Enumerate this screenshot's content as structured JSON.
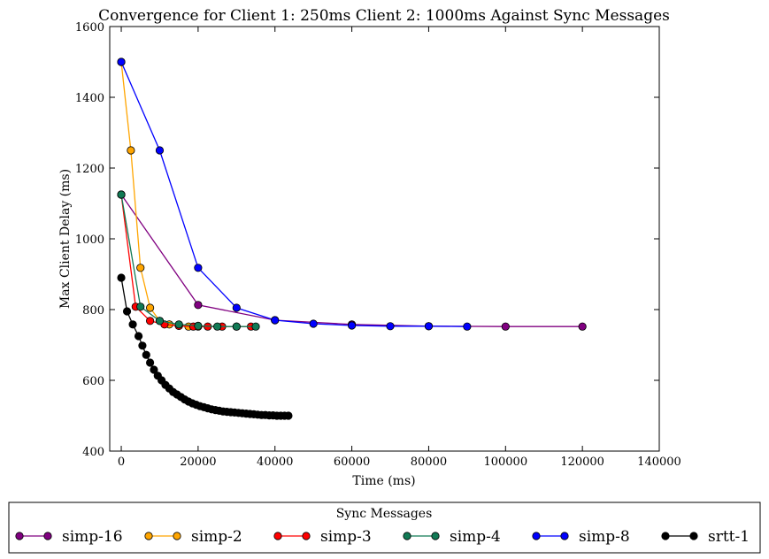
{
  "chart_data": {
    "type": "line",
    "title": "Convergence for Client 1: 250ms Client 2: 1000ms Against Sync Messages",
    "xlabel": "Time (ms)",
    "ylabel": "Max Client Delay (ms)",
    "xlim": [
      -3000,
      140000
    ],
    "ylim": [
      400,
      1600
    ],
    "xticks": [
      0,
      20000,
      40000,
      60000,
      80000,
      100000,
      120000,
      140000
    ],
    "yticks": [
      400,
      600,
      800,
      1000,
      1200,
      1400,
      1600
    ],
    "grid": false,
    "legend": {
      "title": "Sync Messages",
      "placement": "below-plot"
    },
    "series": [
      {
        "name": "simp-16",
        "color": "#800080",
        "x": [
          0,
          20000,
          40000,
          60000,
          80000,
          100000,
          120000
        ],
        "y": [
          1125,
          813,
          770,
          758,
          753,
          752,
          752
        ]
      },
      {
        "name": "simp-2",
        "color": "#FFA500",
        "x": [
          0,
          2500,
          5000,
          7500,
          10000,
          12500,
          15000,
          17500,
          20000
        ],
        "y": [
          1500,
          1250,
          918,
          805,
          768,
          758,
          754,
          752,
          752
        ]
      },
      {
        "name": "simp-3",
        "color": "#FF0000",
        "x": [
          0,
          3750,
          7500,
          11250,
          15000,
          18750,
          22500,
          26250,
          30000,
          33750
        ],
        "y": [
          1125,
          808,
          768,
          758,
          754,
          752,
          752,
          752,
          752,
          752
        ]
      },
      {
        "name": "simp-4",
        "color": "#117A55",
        "x": [
          0,
          5000,
          10000,
          15000,
          20000,
          25000,
          30000,
          35000
        ],
        "y": [
          1125,
          808,
          768,
          758,
          754,
          752,
          752,
          752
        ]
      },
      {
        "name": "simp-8",
        "color": "#0000FF",
        "x": [
          0,
          10000,
          20000,
          30000,
          40000,
          50000,
          60000,
          70000,
          80000,
          90000
        ],
        "y": [
          1500,
          1250,
          918,
          805,
          770,
          760,
          755,
          753,
          753,
          752
        ]
      },
      {
        "name": "srtt-1",
        "color": "#000000",
        "x": [
          0,
          1500,
          3000,
          4500,
          5500,
          6500,
          7500,
          8500,
          9500,
          10500,
          11500,
          12500,
          13500,
          14500,
          15500,
          16500,
          17500,
          18500,
          19500,
          20500,
          21500,
          22500,
          23500,
          24500,
          25500,
          26500,
          27500,
          28500,
          29500,
          30500,
          31500,
          32500,
          33500,
          34500,
          35500,
          36500,
          37500,
          38500,
          39500,
          40500,
          41500,
          42500,
          43500
        ],
        "y": [
          890,
          795,
          758,
          725,
          698,
          672,
          650,
          630,
          613,
          600,
          587,
          577,
          567,
          560,
          553,
          546,
          540,
          535,
          531,
          527,
          524,
          521,
          518,
          516,
          514,
          512,
          511,
          510,
          509,
          508,
          507,
          506,
          505,
          504,
          503,
          502,
          502,
          501,
          501,
          500,
          500,
          500,
          500
        ]
      }
    ]
  }
}
